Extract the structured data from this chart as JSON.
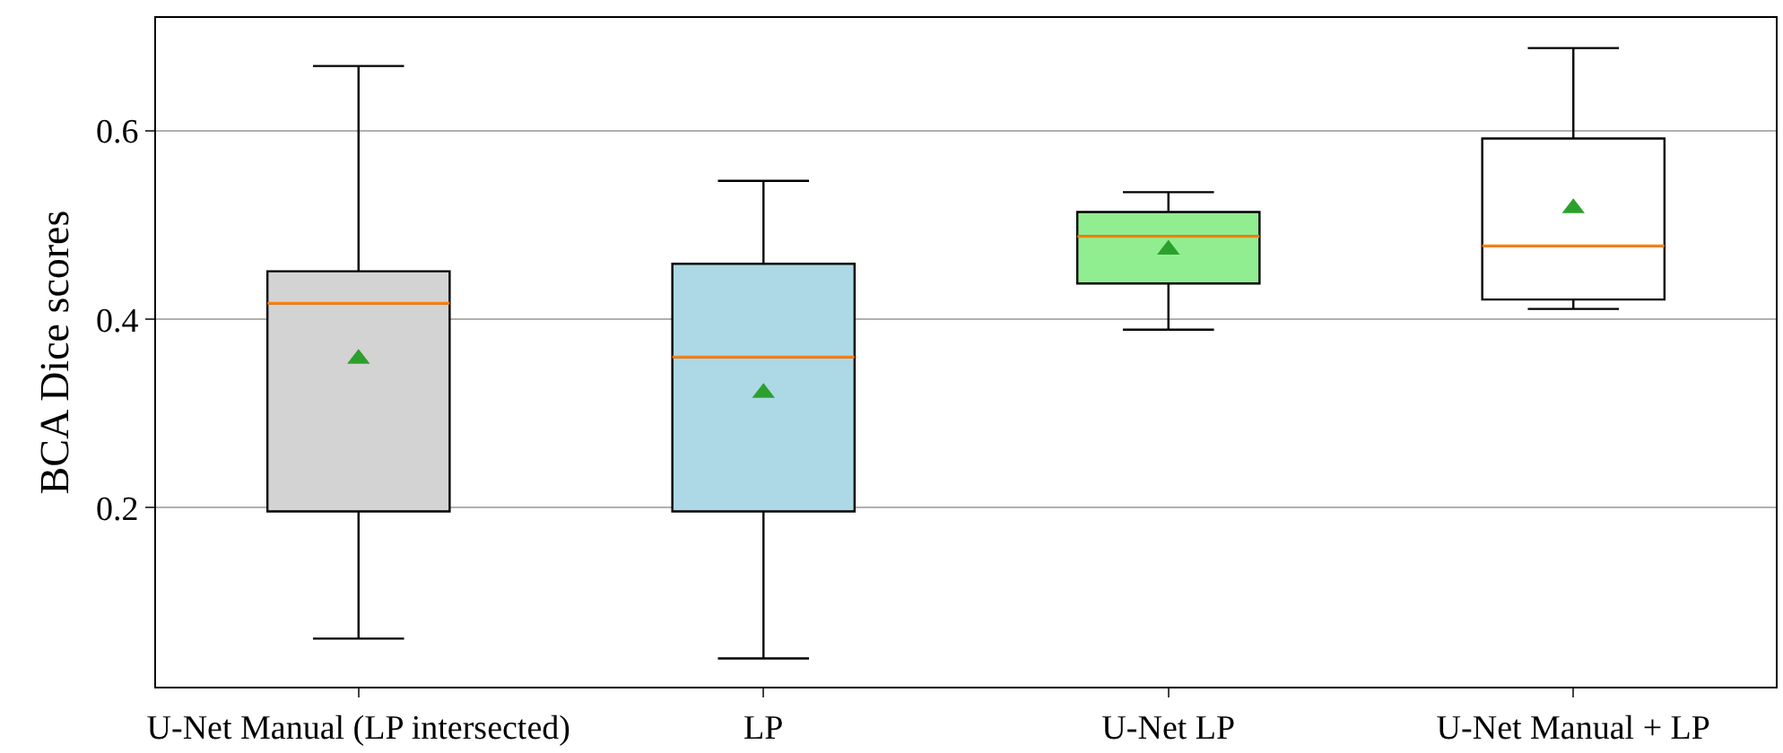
{
  "chart_data": {
    "type": "box",
    "ylabel": "BCA Dice scores",
    "categories": [
      "U-Net Manual (LP intersected)",
      "LP",
      "U-Net LP",
      "U-Net Manual + LP"
    ],
    "colors": [
      "#d3d3d3",
      "#add8e6",
      "#90ee90",
      "#ffffff"
    ],
    "boxes": [
      {
        "low": 0.061,
        "q1": 0.196,
        "median": 0.417,
        "q3": 0.451,
        "high": 0.669,
        "mean": 0.358
      },
      {
        "low": 0.04,
        "q1": 0.196,
        "median": 0.36,
        "q3": 0.459,
        "high": 0.547,
        "mean": 0.322
      },
      {
        "low": 0.389,
        "q1": 0.438,
        "median": 0.488,
        "q3": 0.514,
        "high": 0.535,
        "mean": 0.474
      },
      {
        "low": 0.411,
        "q1": 0.421,
        "median": 0.478,
        "q3": 0.592,
        "high": 0.688,
        "mean": 0.518
      }
    ],
    "ylim": [
      0.01,
      0.72
    ],
    "yticks": [
      0.2,
      0.4,
      0.6
    ],
    "grid": "y",
    "marker": "triangle"
  }
}
